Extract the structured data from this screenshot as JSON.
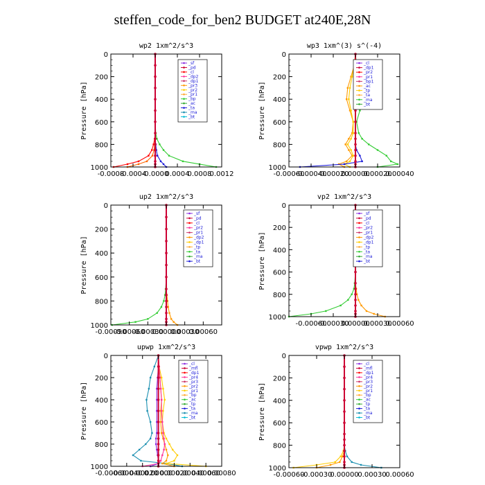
{
  "figure_title": "steffen_code_for_ben2  BUDGET at240E,28N",
  "chart_data": [
    {
      "type": "line",
      "title": "wp2   1xm^2/s^3",
      "ylabel": "Pressure  [hPa]",
      "ylim": [
        1000,
        0
      ],
      "yticks": [
        0,
        200,
        400,
        600,
        800,
        1000
      ],
      "xlim": [
        -0.0008,
        0.0012
      ],
      "xticks": [
        -0.0008,
        -0.0004,
        0.0,
        0.0004,
        0.0008,
        0.0012
      ],
      "xtick_labels": [
        "-0.0008",
        "-0.0004",
        "-0.0000",
        "0.0004",
        "0.0008",
        "0.0012"
      ],
      "legend": [
        "_sf",
        "_pd",
        "_cl",
        "_dp2",
        "_dp1",
        "_pr3",
        "_pr2",
        "_pr1",
        "_bp",
        "_ac",
        "_ta",
        "_ma",
        "_bt"
      ],
      "levels": [
        0,
        100,
        200,
        300,
        400,
        500,
        600,
        700,
        750,
        800,
        850,
        900,
        950,
        975,
        1000
      ],
      "series": [
        {
          "color": "#8a2be2",
          "values": [
            0,
            0,
            0,
            0,
            0,
            0,
            0,
            0,
            0,
            0,
            0,
            0,
            0,
            0,
            0
          ]
        },
        {
          "color": "#ff0000",
          "values": [
            0,
            0,
            0,
            0,
            0,
            0,
            0,
            0,
            -1e-05,
            -3e-05,
            -6e-05,
            -0.00012,
            -0.0003,
            -0.0005,
            -0.00075
          ]
        },
        {
          "color": "#ff6600",
          "values": [
            0,
            0,
            0,
            0,
            0,
            0,
            0,
            0,
            0,
            -1e-05,
            -2e-05,
            -5e-05,
            -0.00015,
            -0.0003,
            -0.0005
          ]
        },
        {
          "color": "#33cc33",
          "values": [
            0,
            0,
            0,
            0,
            0,
            0,
            0,
            1e-05,
            3e-05,
            8e-05,
            0.00015,
            0.00025,
            0.0005,
            0.0008,
            0.0011
          ]
        },
        {
          "color": "#1a1ad8",
          "values": [
            0,
            0,
            0,
            0,
            0,
            0,
            0,
            0,
            0,
            1e-05,
            2e-05,
            4e-05,
            0.0001,
            0.00015,
            0.0002
          ]
        },
        {
          "color": "#cc0033",
          "values": [
            0,
            0,
            0,
            0,
            0,
            0,
            0,
            0,
            0,
            0,
            0,
            0,
            0,
            0,
            0
          ],
          "markers": true
        }
      ]
    },
    {
      "type": "line",
      "title": "wp3   1xm^(3) s^(-4)",
      "ylabel": "Pressure  [hPa]",
      "ylim": [
        1000,
        0
      ],
      "yticks": [
        0,
        200,
        400,
        600,
        800,
        1000
      ],
      "xlim": [
        -0.0006,
        0.0004
      ],
      "xticks": [
        -0.0006,
        -0.0004,
        -0.0002,
        0.0,
        0.0002,
        0.0004
      ],
      "xtick_labels": [
        "-0.00060",
        "-0.00040",
        "-0.00020",
        "0.00000",
        "0.00020",
        "0.00040"
      ],
      "legend": [
        "_cl",
        "_dp1",
        "_pr2",
        "_pr1",
        "_bp1",
        "_ac",
        "_tp",
        "_ta",
        "_ma",
        "_bt"
      ],
      "levels": [
        0,
        100,
        200,
        300,
        400,
        500,
        600,
        700,
        750,
        800,
        850,
        900,
        950,
        975,
        1000
      ],
      "series": [
        {
          "color": "#33cc33",
          "values": [
            0,
            1e-05,
            3e-05,
            4e-05,
            6e-05,
            4e-05,
            1e-05,
            3e-05,
            6e-05,
            0.00012,
            0.0002,
            0.00028,
            0.00032,
            0.00038,
            0.0002
          ]
        },
        {
          "color": "#ff9900",
          "values": [
            0,
            -1e-05,
            -4e-05,
            -7e-05,
            -8e-05,
            -5e-05,
            -2e-05,
            -3e-05,
            -6e-05,
            -9e-05,
            -6e-05,
            -3e-05,
            -8e-05,
            -0.00015,
            -0.0001
          ]
        },
        {
          "color": "#ffcc00",
          "values": [
            0,
            -1e-05,
            -3e-05,
            -5e-05,
            -6e-05,
            -4e-05,
            -2e-05,
            -2e-05,
            -4e-05,
            -7e-05,
            -4e-05,
            -2e-05,
            -5e-05,
            -0.0001,
            -5e-05
          ]
        },
        {
          "color": "#1a1ad8",
          "values": [
            0,
            0,
            0,
            0,
            0,
            0,
            0,
            0,
            0,
            0,
            1e-05,
            4e-05,
            6e-05,
            -0.0001,
            -0.0005
          ]
        },
        {
          "color": "#cc0033",
          "values": [
            0,
            0,
            0,
            0,
            0,
            0,
            0,
            0,
            0,
            0,
            0,
            0,
            0,
            0,
            0
          ],
          "markers": true
        }
      ]
    },
    {
      "type": "line",
      "title": "up2   1xm^2/s^3",
      "ylabel": "Pressure  [hPa]",
      "ylim": [
        1000,
        0
      ],
      "yticks": [
        0,
        200,
        400,
        600,
        800,
        1000
      ],
      "xlim": [
        -0.0009,
        0.0009
      ],
      "xticks": [
        -0.0009,
        -0.0006,
        -0.0003,
        0.0,
        0.0003,
        0.0006
      ],
      "xtick_labels": [
        "-0.00090",
        "-0.00060",
        "-0.00030",
        "0.00000",
        "0.00030",
        "0.00060"
      ],
      "legend": [
        "_sf",
        "_pd",
        "_cl",
        "_pr2",
        "_pr1",
        "_dp2",
        "_dp1",
        "_tp",
        "_ta",
        "_ma",
        "_bt"
      ],
      "levels": [
        0,
        100,
        200,
        300,
        400,
        500,
        600,
        700,
        750,
        800,
        850,
        900,
        950,
        975,
        1000
      ],
      "series": [
        {
          "color": "#33cc33",
          "values": [
            0,
            0,
            0,
            0,
            0,
            0,
            0,
            -1e-05,
            -2e-05,
            -4e-05,
            -8e-05,
            -0.00015,
            -0.0003,
            -0.0005,
            -0.00088
          ]
        },
        {
          "color": "#ff9900",
          "values": [
            0,
            0,
            0,
            0,
            0,
            0,
            0,
            0,
            1e-05,
            2e-05,
            3e-05,
            5e-05,
            8e-05,
            0.00012,
            0.00018
          ]
        },
        {
          "color": "#cc0033",
          "values": [
            0,
            0,
            0,
            0,
            0,
            0,
            0,
            0,
            0,
            0,
            0,
            0,
            0,
            0,
            0
          ],
          "markers": true
        }
      ]
    },
    {
      "type": "line",
      "title": "vp2   1xm^2/s^3",
      "ylabel": "Pressure  [hPa]",
      "ylim": [
        1000,
        0
      ],
      "yticks": [
        0,
        200,
        400,
        600,
        800,
        1000
      ],
      "xlim": [
        -0.0009,
        0.0006
      ],
      "xticks": [
        -0.0006,
        -0.0003,
        0.0,
        0.0003,
        0.0006
      ],
      "xtick_labels": [
        "-0.00060",
        "-0.00030",
        "0.00000",
        "0.00030",
        "0.00060"
      ],
      "legend": [
        "_sf",
        "_pd",
        "_cl",
        "_pr2",
        "_pr1",
        "_dp2",
        "_dp1",
        "_tp",
        "_ta",
        "_ma",
        "_bt"
      ],
      "levels": [
        0,
        100,
        200,
        300,
        400,
        500,
        600,
        700,
        750,
        800,
        850,
        900,
        950,
        975,
        1000
      ],
      "series": [
        {
          "color": "#33cc33",
          "values": [
            0,
            0,
            0,
            0,
            0,
            0,
            0,
            -1e-05,
            -2e-05,
            -5e-05,
            -0.0001,
            -0.0002,
            -0.0004,
            -0.0006,
            -0.0009
          ]
        },
        {
          "color": "#ff9900",
          "values": [
            0,
            0,
            0,
            0,
            0,
            0,
            0,
            0,
            1e-05,
            2e-05,
            4e-05,
            8e-05,
            0.00015,
            0.00025,
            0.0004
          ]
        },
        {
          "color": "#cc0033",
          "values": [
            0,
            0,
            0,
            0,
            0,
            0,
            0,
            0,
            0,
            0,
            0,
            0,
            0,
            0,
            0
          ],
          "markers": true
        }
      ]
    },
    {
      "type": "line",
      "title": "upwp   1xm^2/s^3",
      "ylabel": "Pressure  [hPa]",
      "ylim": [
        1000,
        0
      ],
      "yticks": [
        0,
        200,
        400,
        600,
        800,
        1000
      ],
      "xlim": [
        -0.0006,
        0.0008
      ],
      "xticks": [
        -0.0006,
        -0.0004,
        -0.0002,
        0.0,
        0.0002,
        0.0004,
        0.0006,
        0.0008
      ],
      "xtick_labels": [
        "-0.00060",
        "-0.00040",
        "-0.00020",
        "0.00000",
        "0.00020",
        "0.00040",
        "0.00060",
        "0.00080"
      ],
      "legend": [
        "_cl",
        "_mfl",
        "_dp1",
        "_pr4",
        "_pr3",
        "_pr2",
        "_pr1",
        "_bp",
        "_ac",
        "_tp",
        "_ta",
        "_ma",
        "_bt"
      ],
      "levels": [
        0,
        100,
        200,
        300,
        400,
        500,
        600,
        700,
        750,
        800,
        850,
        900,
        950,
        975,
        1000
      ],
      "series": [
        {
          "color": "#1a8fb0",
          "values": [
            0,
            -5e-05,
            -0.0001,
            -0.00012,
            -0.00015,
            -0.00014,
            -0.0001,
            -8e-05,
            -0.0001,
            -0.00016,
            -0.00024,
            -0.00032,
            -0.00022,
            0.0001,
            0.0003
          ]
        },
        {
          "color": "#ffcc00",
          "values": [
            0,
            1e-05,
            4e-05,
            6e-05,
            8e-05,
            6e-05,
            5e-05,
            7e-05,
            0.0001,
            0.00014,
            0.00018,
            0.00024,
            0.0002,
            0.0001,
            0.0006
          ]
        },
        {
          "color": "#ff9900",
          "values": [
            0,
            0,
            2e-05,
            3e-05,
            4e-05,
            3e-05,
            3e-05,
            4e-05,
            6e-05,
            8e-05,
            0.0001,
            0.00012,
            0.0001,
            5e-05,
            0.0002
          ]
        },
        {
          "color": "#ff3399",
          "values": [
            0,
            1e-05,
            2e-05,
            3e-05,
            4e-05,
            4e-05,
            5e-05,
            6e-05,
            7e-05,
            8e-05,
            7e-05,
            5e-05,
            3e-05,
            0,
            -0.0002
          ]
        },
        {
          "color": "#8a2be2",
          "values": [
            0,
            0,
            -1e-05,
            -2e-05,
            -2e-05,
            -2e-05,
            -2e-05,
            -2e-05,
            -3e-05,
            -3e-05,
            -2e-05,
            -1e-05,
            0,
            0,
            -0.0001
          ]
        },
        {
          "color": "#cc0033",
          "values": [
            0,
            0,
            0,
            0,
            0,
            0,
            0,
            0,
            0,
            0,
            0,
            0,
            0,
            0,
            0
          ],
          "markers": true
        }
      ]
    },
    {
      "type": "line",
      "title": "vpwp   1xm^2/s^3",
      "ylabel": "Pressure  [hPa]",
      "ylim": [
        1000,
        0
      ],
      "yticks": [
        0,
        200,
        400,
        600,
        800,
        1000
      ],
      "xlim": [
        -0.0006,
        0.0006
      ],
      "xticks": [
        -0.0006,
        -0.0003,
        0.0,
        0.0003,
        0.0006
      ],
      "xtick_labels": [
        "-0.00060",
        "-0.00030",
        "0.00000",
        "0.00030",
        "0.00060"
      ],
      "legend": [
        "_cl",
        "_mfl",
        "_dp1",
        "_pr4",
        "_pr3",
        "_pr2",
        "_pr1",
        "_bp",
        "_ac",
        "_tp",
        "_ta",
        "_ma",
        "_bt"
      ],
      "levels": [
        0,
        100,
        200,
        300,
        400,
        500,
        600,
        700,
        750,
        800,
        850,
        900,
        950,
        975,
        1000
      ],
      "series": [
        {
          "color": "#ffcc00",
          "values": [
            0,
            0,
            0,
            0,
            0,
            0,
            0,
            0,
            0,
            0,
            -1e-05,
            -4e-05,
            -0.0001,
            -0.0003,
            -0.00055
          ]
        },
        {
          "color": "#ff9900",
          "values": [
            0,
            0,
            0,
            0,
            0,
            0,
            0,
            0,
            0,
            0,
            0,
            -2e-05,
            -5e-05,
            -0.00015,
            -0.0003
          ]
        },
        {
          "color": "#1a8fb0",
          "values": [
            0,
            0,
            0,
            0,
            0,
            0,
            0,
            0,
            0,
            0,
            1e-05,
            3e-05,
            8e-05,
            0.00018,
            0.0004
          ]
        },
        {
          "color": "#8a2be2",
          "values": [
            0,
            0,
            0,
            0,
            0,
            0,
            0,
            0,
            0,
            0,
            0,
            0,
            0,
            0,
            0
          ]
        },
        {
          "color": "#cc0033",
          "values": [
            0,
            0,
            0,
            0,
            0,
            0,
            0,
            0,
            0,
            0,
            0,
            0,
            0,
            0,
            0
          ],
          "markers": true
        }
      ]
    }
  ]
}
